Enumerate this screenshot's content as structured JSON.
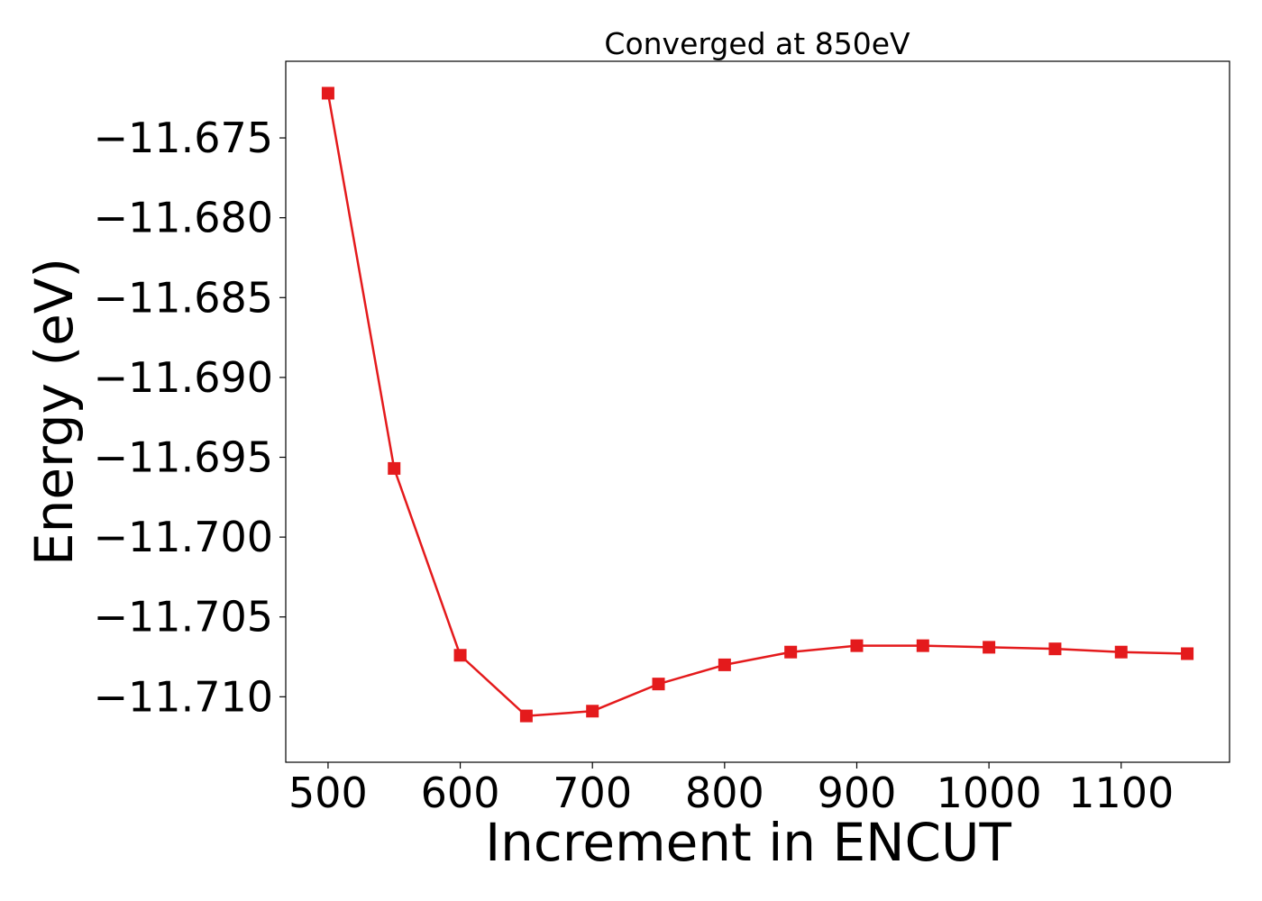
{
  "chart_data": {
    "type": "line",
    "title": "Converged at 850eV",
    "xlabel": "Increment in ENCUT",
    "ylabel": "Energy (eV)",
    "x": [
      500,
      550,
      600,
      650,
      700,
      750,
      800,
      850,
      900,
      950,
      1000,
      1050,
      1100,
      1150
    ],
    "series": [
      {
        "values": [
          -11.6722,
          -11.6957,
          -11.7074,
          -11.7112,
          -11.7109,
          -11.7092,
          -11.708,
          -11.7072,
          -11.7068,
          -11.7068,
          -11.7069,
          -11.707,
          -11.7072,
          -11.7073
        ],
        "color": "#e41a1c",
        "marker": "square"
      }
    ],
    "xticks": [
      500,
      600,
      700,
      800,
      900,
      1000,
      1100
    ],
    "yticks": [
      -11.675,
      -11.68,
      -11.685,
      -11.69,
      -11.695,
      -11.7,
      -11.705,
      -11.71
    ],
    "ytick_labels": [
      "−11.675",
      "−11.680",
      "−11.685",
      "−11.690",
      "−11.695",
      "−11.700",
      "−11.705",
      "−11.710"
    ],
    "xlim": [
      468,
      1182
    ],
    "ylim": [
      -11.7141,
      -11.6702
    ],
    "grid": false,
    "legend": "none"
  }
}
